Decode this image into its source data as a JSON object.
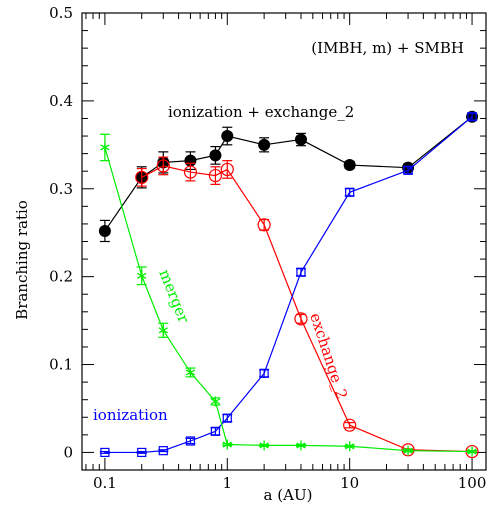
{
  "chart_data": {
    "type": "line",
    "title": "",
    "annotation": "(IMBH, m) + SMBH",
    "xlabel": "a (AU)",
    "ylabel": "Branching ratio",
    "xscale": "log",
    "xlim": [
      0.065,
      130
    ],
    "ylim": [
      -0.02,
      0.5
    ],
    "x_ticks": [
      0.1,
      1,
      10,
      100
    ],
    "x_tick_labels": [
      "0.1",
      "1",
      "10",
      "100"
    ],
    "y_ticks": [
      0,
      0.1,
      0.2,
      0.3,
      0.4,
      0.5
    ],
    "y_tick_labels": [
      "0",
      "0.1",
      "0.2",
      "0.3",
      "0.4",
      "0.5"
    ],
    "grid": false,
    "series": [
      {
        "name": "ionization + exchange_2",
        "color": "#000000",
        "marker": "filled-circle",
        "x": [
          0.1,
          0.2,
          0.3,
          0.5,
          0.8,
          1,
          2,
          4,
          10,
          30,
          100
        ],
        "y": [
          0.252,
          0.313,
          0.33,
          0.332,
          0.338,
          0.36,
          0.35,
          0.356,
          0.327,
          0.324,
          0.382
        ],
        "err": [
          0.012,
          0.012,
          0.012,
          0.01,
          0.01,
          0.01,
          0.008,
          0.007,
          0.004,
          0.004,
          0.004
        ]
      },
      {
        "name": "exchange_2",
        "color": "#ff0000",
        "marker": "open-circle",
        "x": [
          0.2,
          0.3,
          0.5,
          0.8,
          1,
          2,
          4,
          10,
          30,
          100
        ],
        "y": [
          0.313,
          0.326,
          0.319,
          0.315,
          0.322,
          0.259,
          0.152,
          0.031,
          0.003,
          0.001
        ],
        "err": [
          0.01,
          0.01,
          0.01,
          0.01,
          0.01,
          0.006,
          0.005,
          0.003,
          0.001,
          0.001
        ]
      },
      {
        "name": "ionization",
        "color": "#0000ff",
        "marker": "open-square",
        "x": [
          0.1,
          0.2,
          0.3,
          0.5,
          0.8,
          1,
          2,
          4,
          10,
          30,
          100
        ],
        "y": [
          0.0,
          0.0,
          0.002,
          0.013,
          0.024,
          0.039,
          0.09,
          0.205,
          0.296,
          0.321,
          0.382
        ],
        "err": [
          0.001,
          0.001,
          0.001,
          0.003,
          0.004,
          0.004,
          0.004,
          0.004,
          0.004,
          0.004,
          0.004
        ]
      },
      {
        "name": "merger",
        "color": "#00ee00",
        "marker": "asterisk",
        "x": [
          0.1,
          0.2,
          0.3,
          0.5,
          0.8,
          1,
          2,
          4,
          10,
          30,
          100
        ],
        "y": [
          0.347,
          0.201,
          0.139,
          0.091,
          0.058,
          0.009,
          0.008,
          0.008,
          0.007,
          0.002,
          0.001
        ],
        "err": [
          0.015,
          0.01,
          0.008,
          0.005,
          0.004,
          0.001,
          0.001,
          0.001,
          0.001,
          0.001,
          0.001
        ]
      }
    ],
    "series_labels": {
      "total": "ionization + exchange_2",
      "exchange": "exchange_2",
      "ionization": "ionization",
      "merger": "merger"
    }
  }
}
